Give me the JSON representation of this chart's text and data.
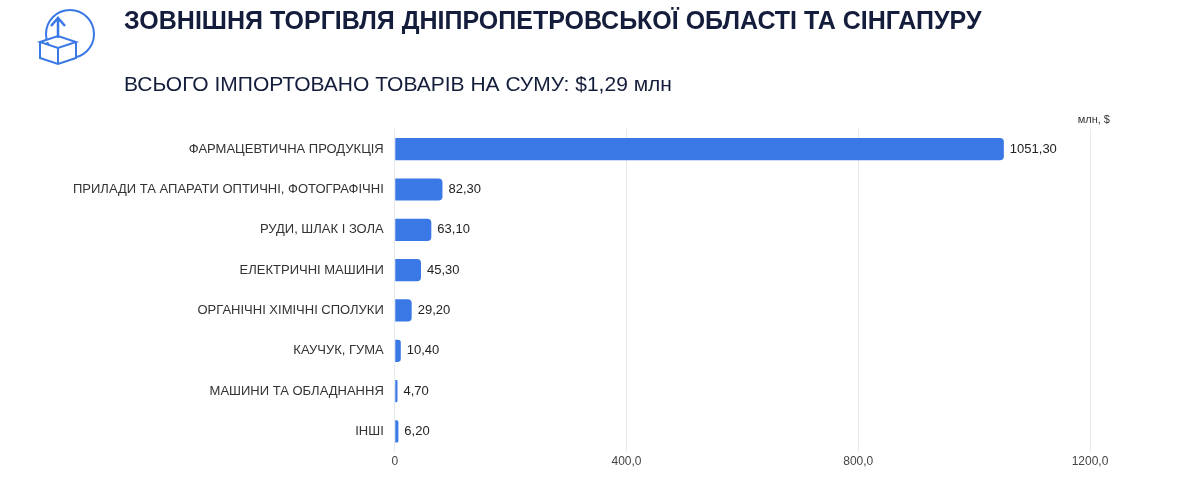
{
  "chart_data": {
    "type": "bar",
    "orientation": "horizontal",
    "title": "ЗОВНІШНЯ ТОРГІВЛЯ ДНІПРОПЕТРОВСЬКОЇ ОБЛАСТІ ТА СІНГАПУРУ",
    "subtitle": "ВСЬОГО ІМПОРТОВАНО ТОВАРІВ НА СУМУ: $1,29 млн",
    "xlabel": "млн, $",
    "categories": [
      "ФАРМАЦЕВТИЧНА ПРОДУКЦІЯ",
      "ПРИЛАДИ ТА АПАРАТИ ОПТИЧНІ, ФОТОГРАФІЧНІ",
      "РУДИ, ШЛАК І ЗОЛА",
      "ЕЛЕКТРИЧНІ МАШИНИ",
      "ОРГАНІЧНІ ХІМІЧНІ СПОЛУКИ",
      "КАУЧУК, ГУМА",
      "МАШИНИ ТА ОБЛАДНАННЯ",
      "ІНШІ"
    ],
    "values": [
      1051.3,
      82.3,
      63.1,
      45.3,
      29.2,
      10.4,
      4.7,
      6.2
    ],
    "value_labels": [
      "1051,30",
      "82,30",
      "63,10",
      "45,30",
      "29,20",
      "10,40",
      "4,70",
      "6,20"
    ],
    "color": "#3a78e6",
    "xlim": [
      0,
      1200
    ],
    "xticks": [
      0,
      {
        "value": 400,
        "label": "400,0"
      },
      {
        "value": 800,
        "label": "800,0"
      },
      {
        "value": 1200,
        "label": "1200,0"
      }
    ],
    "grid": "x",
    "legend": false
  }
}
